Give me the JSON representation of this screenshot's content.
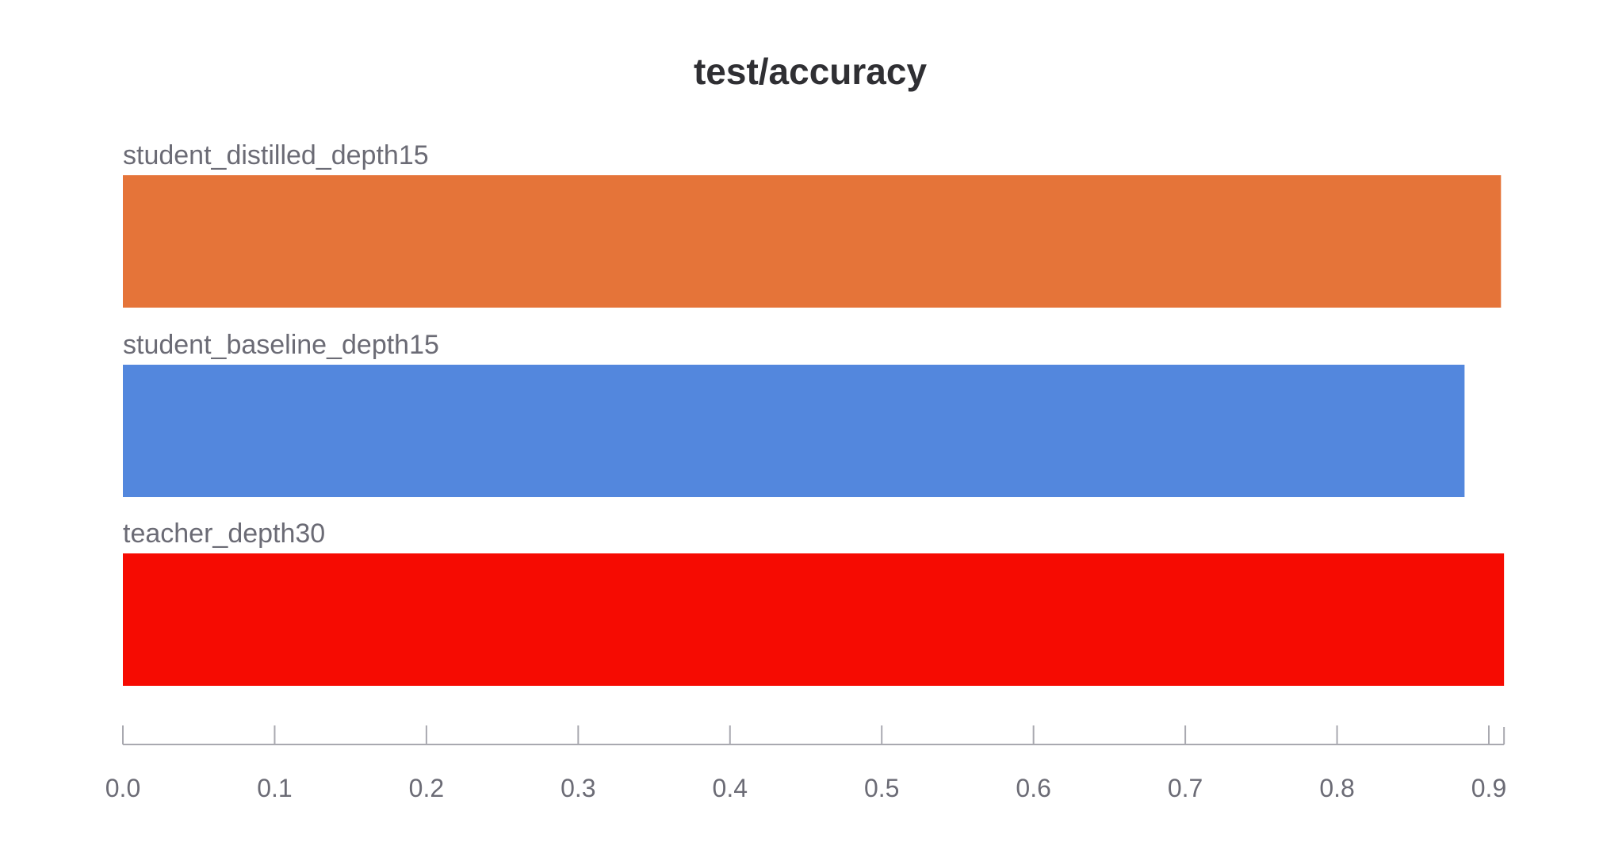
{
  "chart_data": {
    "type": "bar",
    "orientation": "horizontal",
    "title": "test/accuracy",
    "xlabel": "",
    "ylabel": "",
    "xlim": [
      0,
      0.91
    ],
    "grid": false,
    "categories": [
      "student_distilled_depth15",
      "student_baseline_depth15",
      "teacher_depth30"
    ],
    "values": [
      0.908,
      0.884,
      0.91
    ],
    "colors": [
      "#e57439",
      "#5387dd",
      "#f60b02"
    ],
    "ticks": [
      "0.0",
      "0.1",
      "0.2",
      "0.3",
      "0.4",
      "0.5",
      "0.6",
      "0.7",
      "0.8",
      "0.9"
    ],
    "tick_values": [
      0,
      0.1,
      0.2,
      0.3,
      0.4,
      0.5,
      0.6,
      0.7,
      0.8,
      0.9
    ]
  }
}
